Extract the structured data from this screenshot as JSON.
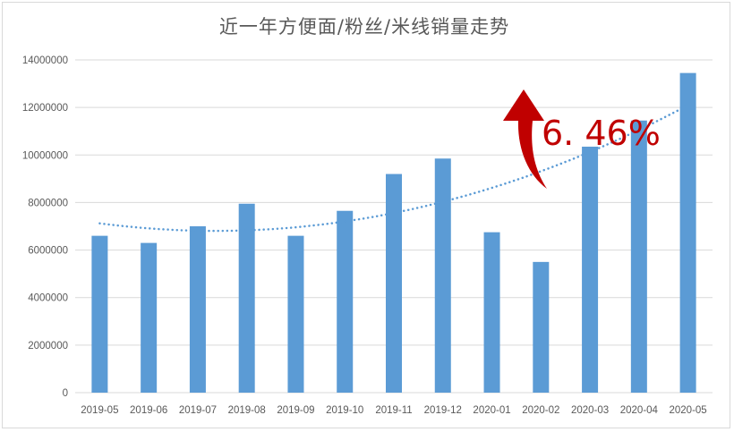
{
  "chart_data": {
    "type": "bar",
    "title": "近一年方便面/粉丝/米线销量走势",
    "categories": [
      "2019-05",
      "2019-06",
      "2019-07",
      "2019-08",
      "2019-09",
      "2019-10",
      "2019-11",
      "2019-12",
      "2020-01",
      "2020-02",
      "2020-03",
      "2020-04",
      "2020-05"
    ],
    "values": [
      6600000,
      6300000,
      7000000,
      7950000,
      6600000,
      7650000,
      9200000,
      9850000,
      6750000,
      5500000,
      10350000,
      11450000,
      13450000
    ],
    "ylim": [
      0,
      14000000
    ],
    "yticks": [
      "0",
      "2000000",
      "4000000",
      "6000000",
      "8000000",
      "10000000",
      "12000000",
      "14000000"
    ],
    "grid": true,
    "legend": "none",
    "trendline": {
      "type": "polynomial",
      "style": "dotted"
    },
    "annotation": {
      "text": "6. 46%",
      "arrow": "up"
    },
    "colors": {
      "bar": "#5b9bd5",
      "trend": "#5b9bd5",
      "grid": "#d9d9d9",
      "annotation": "#c00000"
    }
  }
}
